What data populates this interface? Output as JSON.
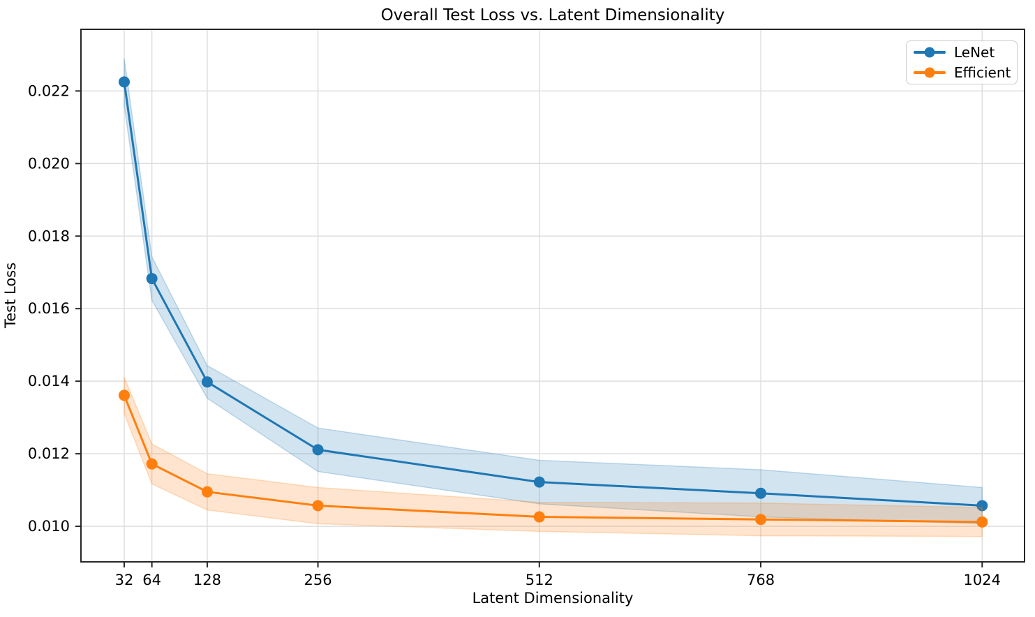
{
  "title": "Overall Test Loss vs. Latent Dimensionality",
  "colors": {
    "lenet": "#1f77b4",
    "efficient": "#ff7f0e",
    "grid": "#dedede",
    "spine": "#262626",
    "tick_text": "#000000",
    "legend_border": "#cccccc"
  },
  "legend": {
    "position": "upper right",
    "items": [
      {
        "label": "LeNet",
        "color": "#1f77b4"
      },
      {
        "label": "Efficient",
        "color": "#ff7f0e"
      }
    ]
  },
  "chart_data": {
    "type": "line",
    "title": "Overall Test Loss vs. Latent Dimensionality",
    "xlabel": "Latent Dimensionality",
    "ylabel": "Test Loss",
    "x": [
      32,
      64,
      128,
      256,
      512,
      768,
      1024
    ],
    "x_tick_labels": [
      "32",
      "64",
      "128",
      "256",
      "512",
      "768",
      "1024"
    ],
    "y_ticks": [
      0.01,
      0.012,
      0.014,
      0.016,
      0.018,
      0.02,
      0.022
    ],
    "y_tick_labels": [
      "0.010",
      "0.012",
      "0.014",
      "0.016",
      "0.018",
      "0.020",
      "0.022"
    ],
    "xlim": [
      -18,
      1073
    ],
    "ylim": [
      0.00902,
      0.0237
    ],
    "grid": true,
    "legend_position": "upper right",
    "band_alpha": 0.2,
    "series": [
      {
        "name": "LeNet",
        "color": "#1f77b4",
        "values": [
          0.02225,
          0.01683,
          0.01398,
          0.01211,
          0.01122,
          0.01091,
          0.01057
        ],
        "band": [
          0.00065,
          0.0006,
          0.00045,
          0.0006,
          0.0006,
          0.00065,
          0.0005
        ]
      },
      {
        "name": "Efficient",
        "color": "#ff7f0e",
        "values": [
          0.01361,
          0.01172,
          0.01095,
          0.01057,
          0.01026,
          0.01019,
          0.01012
        ],
        "band": [
          0.0005,
          0.00055,
          0.0005,
          0.0005,
          0.0004,
          0.00045,
          0.0004
        ]
      }
    ]
  }
}
